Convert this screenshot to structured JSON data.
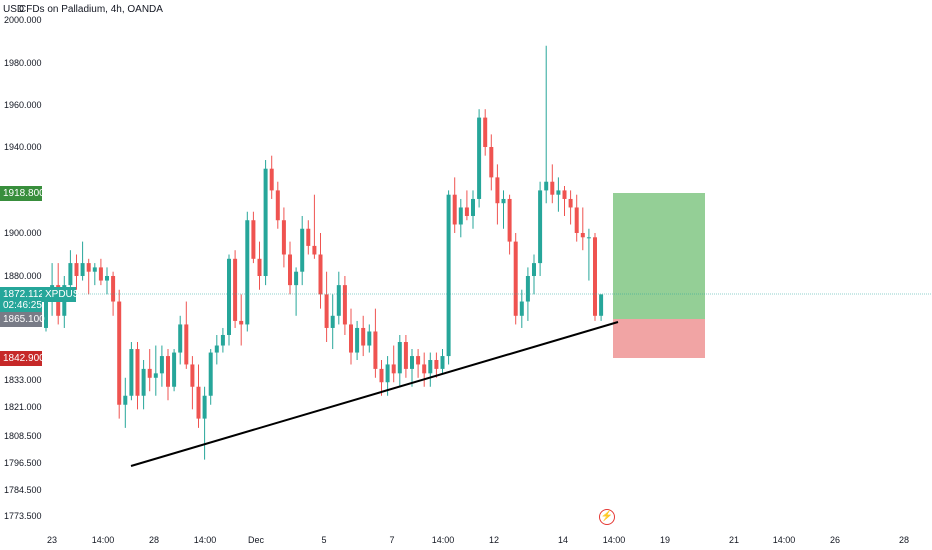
{
  "header": {
    "title": "CFDs on Palladium, 4h, OANDA",
    "currency": "USD"
  },
  "colors": {
    "up": "#26a69a",
    "down": "#ef5350",
    "tp": "#81c784",
    "sl": "#ef9a9a",
    "trend": "#000000"
  },
  "labels": {
    "target_price": "1918.800",
    "current_price": "1872.112",
    "symbol": "XPDUSD",
    "countdown": "02:46:25",
    "entry_price": "1865.100",
    "stop_price": "1842.900"
  },
  "icons": {
    "event_marker": "lightning-icon"
  },
  "chart_data": {
    "type": "candlestick",
    "title": "CFDs on Palladium, 4h, OANDA",
    "y_scale": "log",
    "y_ticks": [
      "2000.000",
      "1980.000",
      "1960.000",
      "1940.000",
      "1900.000",
      "1880.000",
      "1833.000",
      "1821.000",
      "1808.500",
      "1796.500",
      "1784.500",
      "1773.500"
    ],
    "x_ticks": [
      "23",
      "14:00",
      "28",
      "14:00",
      "Dec",
      "5",
      "7",
      "14:00",
      "12",
      "14",
      "14:00",
      "19",
      "21",
      "14:00",
      "26",
      "28"
    ],
    "candles": [
      [
        1860,
        1872,
        1858,
        1870
      ],
      [
        1870,
        1886,
        1866,
        1876
      ],
      [
        1876,
        1886,
        1862,
        1866
      ],
      [
        1866,
        1880,
        1860,
        1876
      ],
      [
        1876,
        1892,
        1874,
        1886
      ],
      [
        1886,
        1890,
        1874,
        1880
      ],
      [
        1880,
        1896,
        1878,
        1886
      ],
      [
        1886,
        1888,
        1872,
        1882
      ],
      [
        1882,
        1886,
        1876,
        1884
      ],
      [
        1884,
        1888,
        1876,
        1878
      ],
      [
        1878,
        1884,
        1872,
        1880
      ],
      [
        1880,
        1882,
        1866,
        1870
      ],
      [
        1870,
        1874,
        1816,
        1822
      ],
      [
        1822,
        1834,
        1812,
        1826
      ],
      [
        1826,
        1852,
        1824,
        1848
      ],
      [
        1848,
        1852,
        1820,
        1826
      ],
      [
        1826,
        1842,
        1820,
        1838
      ],
      [
        1838,
        1848,
        1828,
        1834
      ],
      [
        1834,
        1850,
        1826,
        1836
      ],
      [
        1836,
        1850,
        1830,
        1844
      ],
      [
        1844,
        1848,
        1824,
        1830
      ],
      [
        1830,
        1848,
        1828,
        1846
      ],
      [
        1846,
        1866,
        1840,
        1862
      ],
      [
        1862,
        1870,
        1838,
        1840
      ],
      [
        1840,
        1844,
        1820,
        1830
      ],
      [
        1830,
        1840,
        1812,
        1816
      ],
      [
        1816,
        1830,
        1798,
        1826
      ],
      [
        1826,
        1848,
        1822,
        1846
      ],
      [
        1846,
        1856,
        1840,
        1850
      ],
      [
        1850,
        1860,
        1846,
        1856
      ],
      [
        1856,
        1890,
        1850,
        1888
      ],
      [
        1888,
        1892,
        1860,
        1864
      ],
      [
        1864,
        1872,
        1850,
        1862
      ],
      [
        1862,
        1910,
        1858,
        1906
      ],
      [
        1906,
        1910,
        1886,
        1888
      ],
      [
        1888,
        1896,
        1874,
        1880
      ],
      [
        1880,
        1934,
        1876,
        1930
      ],
      [
        1930,
        1936,
        1916,
        1920
      ],
      [
        1920,
        1924,
        1902,
        1906
      ],
      [
        1906,
        1912,
        1884,
        1890
      ],
      [
        1890,
        1896,
        1872,
        1876
      ],
      [
        1876,
        1884,
        1866,
        1882
      ],
      [
        1882,
        1908,
        1876,
        1902
      ],
      [
        1902,
        1906,
        1890,
        1894
      ],
      [
        1894,
        1918,
        1888,
        1890
      ],
      [
        1890,
        1900,
        1868,
        1872
      ],
      [
        1872,
        1882,
        1852,
        1860
      ],
      [
        1860,
        1872,
        1848,
        1866
      ],
      [
        1866,
        1882,
        1862,
        1876
      ],
      [
        1876,
        1880,
        1856,
        1862
      ],
      [
        1862,
        1868,
        1840,
        1846
      ],
      [
        1846,
        1864,
        1842,
        1860
      ],
      [
        1860,
        1866,
        1844,
        1850
      ],
      [
        1850,
        1862,
        1846,
        1858
      ],
      [
        1858,
        1868,
        1834,
        1838
      ],
      [
        1838,
        1842,
        1826,
        1832
      ],
      [
        1832,
        1844,
        1826,
        1840
      ],
      [
        1840,
        1850,
        1832,
        1836
      ],
      [
        1836,
        1856,
        1830,
        1852
      ],
      [
        1852,
        1856,
        1834,
        1838
      ],
      [
        1838,
        1848,
        1830,
        1844
      ],
      [
        1844,
        1848,
        1834,
        1840
      ],
      [
        1840,
        1846,
        1830,
        1836
      ],
      [
        1836,
        1846,
        1830,
        1842
      ],
      [
        1842,
        1846,
        1834,
        1838
      ],
      [
        1838,
        1848,
        1836,
        1844
      ],
      [
        1844,
        1920,
        1840,
        1918
      ],
      [
        1918,
        1926,
        1900,
        1904
      ],
      [
        1904,
        1916,
        1898,
        1912
      ],
      [
        1912,
        1920,
        1906,
        1908
      ],
      [
        1908,
        1920,
        1902,
        1916
      ],
      [
        1916,
        1958,
        1912,
        1954
      ],
      [
        1954,
        1958,
        1936,
        1940
      ],
      [
        1940,
        1946,
        1920,
        1926
      ],
      [
        1926,
        1932,
        1904,
        1914
      ],
      [
        1914,
        1920,
        1902,
        1916
      ],
      [
        1916,
        1918,
        1890,
        1896
      ],
      [
        1896,
        1900,
        1862,
        1866
      ],
      [
        1866,
        1874,
        1860,
        1870
      ],
      [
        1870,
        1884,
        1864,
        1880
      ],
      [
        1880,
        1890,
        1872,
        1886
      ],
      [
        1886,
        1924,
        1880,
        1920
      ],
      [
        1920,
        1988,
        1914,
        1924
      ],
      [
        1924,
        1932,
        1914,
        1918
      ],
      [
        1918,
        1926,
        1910,
        1920
      ],
      [
        1920,
        1922,
        1908,
        1916
      ],
      [
        1916,
        1920,
        1904,
        1912
      ],
      [
        1912,
        1918,
        1896,
        1900
      ],
      [
        1900,
        1912,
        1892,
        1898
      ],
      [
        1898,
        1902,
        1878,
        1898
      ],
      [
        1898,
        1900,
        1864,
        1866
      ],
      [
        1866,
        1872,
        1864,
        1872
      ]
    ],
    "position": {
      "entry": 1865.1,
      "target": 1918.8,
      "stop": 1842.9
    },
    "trendline": {
      "from_price": 1796.5,
      "to_price": 1865.1
    }
  }
}
